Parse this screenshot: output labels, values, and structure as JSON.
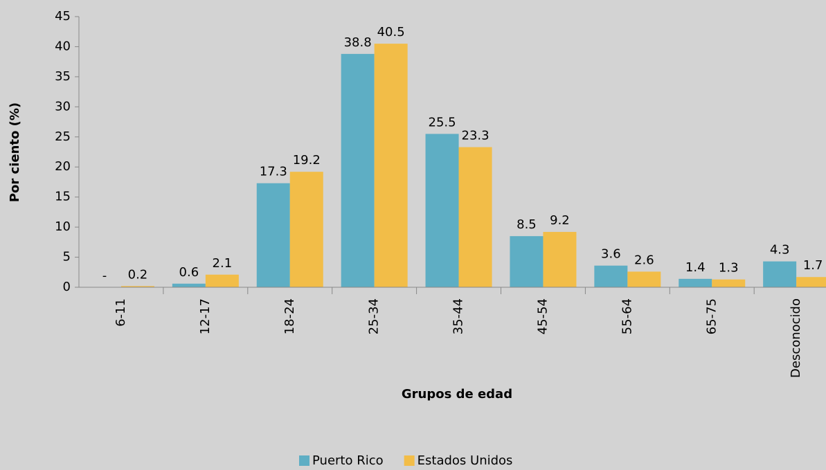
{
  "chart_data": {
    "type": "bar",
    "x_label": "Grupos de edad",
    "y_label": "Por ciento (%)",
    "categories": [
      "6-11",
      "12-17",
      "18-24",
      "25-34",
      "35-44",
      "45-54",
      "55-64",
      "65-75",
      "Desconocido"
    ],
    "series": [
      {
        "name": "Puerto Rico",
        "color": "#5eaec4",
        "values": [
          0,
          0.6,
          17.3,
          38.8,
          25.5,
          8.5,
          3.6,
          1.4,
          4.3
        ],
        "value_labels": [
          "-",
          "0.6",
          "17.3",
          "38.8",
          "25.5",
          "8.5",
          "3.6",
          "1.4",
          "4.3"
        ]
      },
      {
        "name": "Estados Unidos",
        "color": "#f2bd48",
        "values": [
          0.2,
          2.1,
          19.2,
          40.5,
          23.3,
          9.2,
          2.6,
          1.3,
          1.7
        ]
      }
    ],
    "ylim": [
      0,
      45
    ],
    "yticks": [
      0,
      5,
      10,
      15,
      20,
      25,
      30,
      35,
      40,
      45
    ],
    "grid": false,
    "legend": "bottom"
  }
}
